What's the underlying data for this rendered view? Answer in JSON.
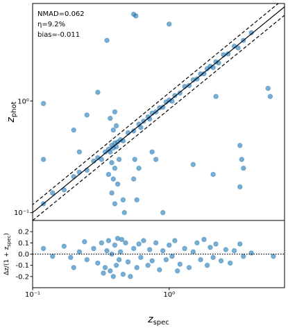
{
  "chart_data": [
    {
      "type": "scatter",
      "color": "#1f77b4",
      "xscale": "log",
      "yscale": "log",
      "xlim": [
        0.1,
        7
      ],
      "ylim": [
        0.085,
        7.5
      ],
      "yticks": [
        {
          "value": 0.1,
          "label": "10⁻¹"
        },
        {
          "value": 1,
          "label": "10⁰"
        }
      ],
      "ylabel": [
        "z",
        "phot"
      ],
      "annotations": [
        "NMAD=0.062",
        "η=9.2%",
        "bias=-0.011"
      ],
      "lines": [
        {
          "style": "solid",
          "x": [
            0.085,
            7.5
          ],
          "y": [
            0.085,
            7.5
          ]
        },
        {
          "style": "dashed",
          "x": [
            0.085,
            6.3
          ],
          "y": [
            0.1,
            7.5
          ]
        },
        {
          "style": "dashed",
          "x": [
            0.1,
            7.5
          ],
          "y": [
            0.085,
            6.3
          ]
        }
      ],
      "x": [
        0.12,
        0.14,
        0.17,
        0.2,
        0.22,
        0.25,
        0.28,
        0.3,
        0.32,
        0.34,
        0.36,
        0.37,
        0.38,
        0.39,
        0.4,
        0.41,
        0.42,
        0.44,
        0.46,
        0.5,
        0.55,
        0.6,
        0.62,
        0.65,
        0.7,
        0.72,
        0.75,
        0.8,
        0.85,
        0.9,
        0.95,
        1.0,
        1.05,
        1.1,
        1.2,
        1.3,
        1.4,
        1.5,
        1.6,
        1.7,
        1.8,
        1.9,
        2.0,
        2.1,
        2.2,
        2.3,
        2.5,
        2.7,
        3.0,
        3.2,
        3.5,
        4.0,
        0.38,
        0.39,
        0.4,
        0.41,
        0.37,
        0.4,
        0.42,
        0.38,
        0.39,
        0.4,
        0.36,
        0.43,
        0.55,
        0.58,
        0.56,
        0.6,
        0.12,
        0.3,
        0.55,
        0.57,
        0.35,
        1.0,
        2.2,
        3.3,
        3.4,
        3.5,
        3.3,
        2.1,
        0.9,
        5.5,
        0.2,
        0.25,
        0.22,
        0.75,
        0.8,
        1.5,
        5.3,
        0.12,
        0.47,
        0.46
      ],
      "y": [
        0.12,
        0.15,
        0.16,
        0.21,
        0.23,
        0.24,
        0.29,
        0.31,
        0.3,
        0.35,
        0.37,
        0.35,
        0.4,
        0.38,
        0.42,
        0.39,
        0.43,
        0.45,
        0.44,
        0.52,
        0.54,
        0.62,
        0.58,
        0.66,
        0.72,
        0.69,
        0.78,
        0.8,
        0.87,
        0.88,
        0.98,
        1.02,
        1.0,
        1.12,
        1.18,
        1.35,
        1.38,
        1.55,
        1.58,
        1.75,
        1.76,
        1.95,
        2.05,
        2.0,
        2.25,
        2.2,
        2.6,
        2.65,
        3.1,
        3.0,
        3.5,
        4.1,
        0.15,
        0.2,
        0.25,
        0.6,
        0.7,
        0.8,
        0.18,
        0.28,
        0.55,
        0.12,
        0.22,
        0.3,
        0.2,
        0.13,
        0.3,
        0.25,
        0.95,
        1.2,
        6.0,
        5.8,
        3.5,
        4.9,
        1.1,
        0.4,
        0.3,
        0.25,
        0.17,
        0.22,
        0.1,
        1.1,
        0.55,
        0.75,
        0.35,
        0.35,
        0.3,
        0.27,
        1.3,
        0.3,
        0.1,
        0.13
      ]
    },
    {
      "type": "scatter",
      "color": "#1f77b4",
      "xscale": "log",
      "xlim": [
        0.1,
        7
      ],
      "ylim": [
        -0.3,
        0.3
      ],
      "xticks": [
        {
          "value": 0.1,
          "label": "10⁻¹"
        },
        {
          "value": 1,
          "label": "10⁰"
        }
      ],
      "yticks": [
        0.2,
        0.1,
        {
          "value": 0,
          "label": "0.0"
        },
        -0.1,
        -0.2
      ],
      "hline": 0,
      "xlabel": [
        "z",
        "spec"
      ],
      "ylabel": [
        "Δz/(1 + z",
        "spec",
        ")"
      ],
      "x": [
        0.12,
        0.14,
        0.17,
        0.19,
        0.22,
        0.25,
        0.28,
        0.3,
        0.32,
        0.34,
        0.35,
        0.36,
        0.37,
        0.38,
        0.39,
        0.4,
        0.41,
        0.42,
        0.43,
        0.44,
        0.46,
        0.48,
        0.5,
        0.55,
        0.58,
        0.6,
        0.62,
        0.65,
        0.7,
        0.72,
        0.75,
        0.8,
        0.85,
        0.9,
        0.95,
        1.0,
        1.05,
        1.1,
        1.2,
        1.3,
        1.4,
        1.5,
        1.6,
        1.7,
        1.8,
        1.9,
        2.0,
        2.1,
        2.2,
        2.4,
        2.6,
        2.8,
        3.0,
        3.3,
        3.5,
        4.0,
        5.8,
        0.2,
        0.24,
        0.33,
        0.45,
        0.52,
        1.15
      ],
      "y": [
        0.05,
        -0.02,
        0.07,
        -0.03,
        0.02,
        -0.05,
        0.05,
        -0.08,
        0.1,
        -0.12,
        0.03,
        0.12,
        -0.15,
        0.0,
        -0.2,
        0.08,
        -0.1,
        0.14,
        -0.05,
        0.02,
        -0.18,
        0.1,
        -0.07,
        0.05,
        -0.12,
        0.09,
        -0.03,
        0.12,
        -0.1,
        0.04,
        -0.06,
        0.1,
        -0.14,
        0.03,
        -0.05,
        0.08,
        -0.02,
        0.12,
        -0.09,
        0.05,
        -0.12,
        0.02,
        0.1,
        -0.05,
        0.13,
        -0.1,
        0.06,
        -0.03,
        0.09,
        -0.06,
        0.04,
        -0.08,
        0.03,
        0.09,
        -0.02,
        0.01,
        -0.02,
        -0.12,
        0.11,
        -0.17,
        0.13,
        -0.2,
        -0.15
      ]
    }
  ]
}
